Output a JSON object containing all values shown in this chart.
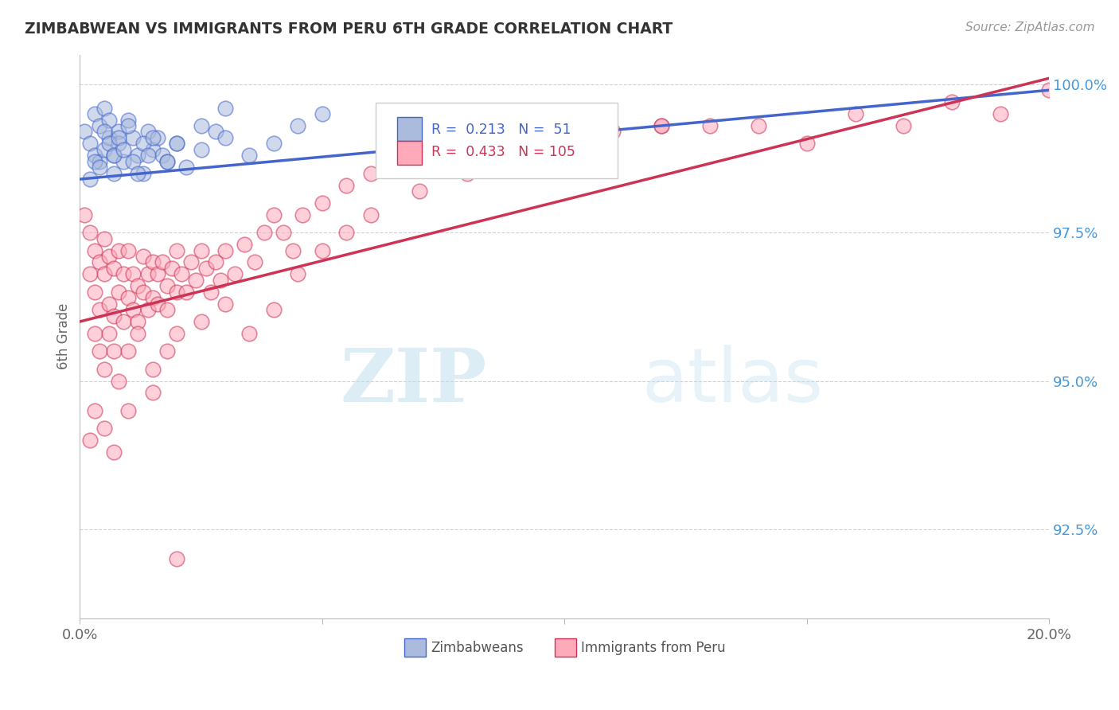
{
  "title": "ZIMBABWEAN VS IMMIGRANTS FROM PERU 6TH GRADE CORRELATION CHART",
  "source_text": "Source: ZipAtlas.com",
  "ylabel": "6th Grade",
  "xlim": [
    0.0,
    0.2
  ],
  "ylim": [
    0.91,
    1.005
  ],
  "xticks": [
    0.0,
    0.05,
    0.1,
    0.15,
    0.2
  ],
  "xticklabels": [
    "0.0%",
    "",
    "",
    "",
    "20.0%"
  ],
  "yticks": [
    0.925,
    0.95,
    0.975,
    1.0
  ],
  "yticklabels": [
    "92.5%",
    "95.0%",
    "97.5%",
    "100.0%"
  ],
  "blue_R": 0.213,
  "blue_N": 51,
  "pink_R": 0.433,
  "pink_N": 105,
  "blue_color": "#AABBDD",
  "pink_color": "#FFAABB",
  "blue_line_color": "#4466CC",
  "pink_line_color": "#CC3355",
  "legend_label_blue": "Zimbabweans",
  "legend_label_pink": "Immigrants from Peru",
  "watermark_zip": "ZIP",
  "watermark_atlas": "atlas",
  "blue_line_y0": 0.984,
  "blue_line_y1": 0.999,
  "pink_line_y0": 0.96,
  "pink_line_y1": 1.001,
  "blue_scatter_x": [
    0.001,
    0.002,
    0.003,
    0.003,
    0.004,
    0.004,
    0.005,
    0.005,
    0.006,
    0.006,
    0.007,
    0.007,
    0.008,
    0.008,
    0.009,
    0.01,
    0.011,
    0.012,
    0.013,
    0.014,
    0.015,
    0.016,
    0.017,
    0.018,
    0.02,
    0.022,
    0.025,
    0.028,
    0.03,
    0.035,
    0.04,
    0.045,
    0.05,
    0.002,
    0.003,
    0.004,
    0.005,
    0.006,
    0.007,
    0.008,
    0.009,
    0.01,
    0.011,
    0.012,
    0.013,
    0.014,
    0.015,
    0.018,
    0.02,
    0.025,
    0.03
  ],
  "blue_scatter_y": [
    0.992,
    0.99,
    0.988,
    0.995,
    0.987,
    0.993,
    0.989,
    0.996,
    0.991,
    0.994,
    0.988,
    0.985,
    0.992,
    0.99,
    0.987,
    0.994,
    0.991,
    0.988,
    0.985,
    0.992,
    0.989,
    0.991,
    0.988,
    0.987,
    0.99,
    0.986,
    0.989,
    0.992,
    0.991,
    0.988,
    0.99,
    0.993,
    0.995,
    0.984,
    0.987,
    0.986,
    0.992,
    0.99,
    0.988,
    0.991,
    0.989,
    0.993,
    0.987,
    0.985,
    0.99,
    0.988,
    0.991,
    0.987,
    0.99,
    0.993,
    0.996
  ],
  "pink_scatter_x": [
    0.001,
    0.002,
    0.002,
    0.003,
    0.003,
    0.004,
    0.004,
    0.005,
    0.005,
    0.006,
    0.006,
    0.007,
    0.007,
    0.008,
    0.008,
    0.009,
    0.009,
    0.01,
    0.01,
    0.011,
    0.011,
    0.012,
    0.012,
    0.013,
    0.013,
    0.014,
    0.014,
    0.015,
    0.015,
    0.016,
    0.016,
    0.017,
    0.018,
    0.018,
    0.019,
    0.02,
    0.02,
    0.021,
    0.022,
    0.023,
    0.024,
    0.025,
    0.026,
    0.027,
    0.028,
    0.029,
    0.03,
    0.032,
    0.034,
    0.036,
    0.038,
    0.04,
    0.042,
    0.044,
    0.046,
    0.05,
    0.055,
    0.06,
    0.065,
    0.07,
    0.075,
    0.08,
    0.09,
    0.1,
    0.12,
    0.14,
    0.16,
    0.18,
    0.2,
    0.003,
    0.004,
    0.005,
    0.006,
    0.007,
    0.008,
    0.01,
    0.012,
    0.015,
    0.018,
    0.02,
    0.025,
    0.03,
    0.035,
    0.04,
    0.045,
    0.05,
    0.055,
    0.06,
    0.07,
    0.08,
    0.09,
    0.1,
    0.11,
    0.12,
    0.13,
    0.15,
    0.17,
    0.19,
    0.002,
    0.003,
    0.005,
    0.007,
    0.01,
    0.015,
    0.02
  ],
  "pink_scatter_y": [
    0.978,
    0.975,
    0.968,
    0.972,
    0.965,
    0.97,
    0.962,
    0.968,
    0.974,
    0.971,
    0.963,
    0.969,
    0.961,
    0.972,
    0.965,
    0.968,
    0.96,
    0.972,
    0.964,
    0.968,
    0.962,
    0.966,
    0.96,
    0.971,
    0.965,
    0.968,
    0.962,
    0.97,
    0.964,
    0.968,
    0.963,
    0.97,
    0.966,
    0.962,
    0.969,
    0.965,
    0.972,
    0.968,
    0.965,
    0.97,
    0.967,
    0.972,
    0.969,
    0.965,
    0.97,
    0.967,
    0.972,
    0.968,
    0.973,
    0.97,
    0.975,
    0.978,
    0.975,
    0.972,
    0.978,
    0.98,
    0.983,
    0.985,
    0.988,
    0.99,
    0.992,
    0.993,
    0.995,
    0.995,
    0.993,
    0.993,
    0.995,
    0.997,
    0.999,
    0.958,
    0.955,
    0.952,
    0.958,
    0.955,
    0.95,
    0.955,
    0.958,
    0.952,
    0.955,
    0.958,
    0.96,
    0.963,
    0.958,
    0.962,
    0.968,
    0.972,
    0.975,
    0.978,
    0.982,
    0.985,
    0.988,
    0.99,
    0.992,
    0.993,
    0.993,
    0.99,
    0.993,
    0.995,
    0.94,
    0.945,
    0.942,
    0.938,
    0.945,
    0.948,
    0.92
  ]
}
